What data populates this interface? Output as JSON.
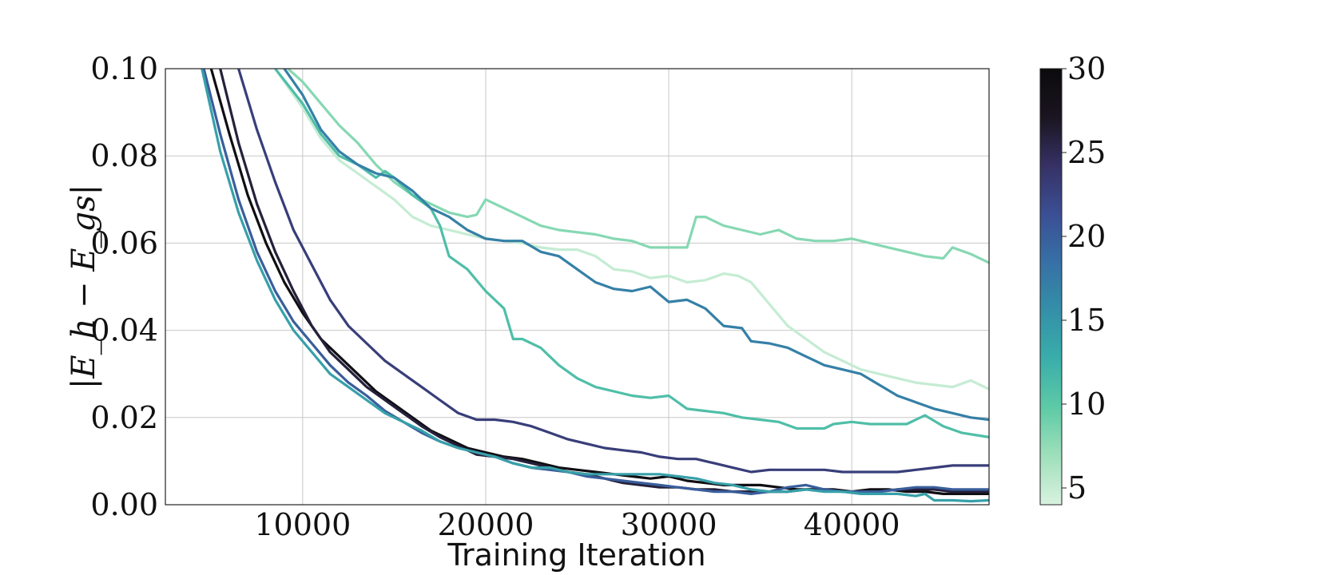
{
  "chart_data": {
    "type": "line",
    "xlabel": "Training Iteration",
    "ylabel": "|E_h − E_gs|",
    "xlim": [
      2500,
      47500
    ],
    "ylim": [
      0.0,
      0.1
    ],
    "xticks": [
      10000,
      20000,
      30000,
      40000
    ],
    "xtick_labels": [
      "10000",
      "20000",
      "30000",
      "40000"
    ],
    "yticks": [
      0.0,
      0.02,
      0.04,
      0.06,
      0.08,
      0.1
    ],
    "ytick_labels": [
      "0.00",
      "0.02",
      "0.04",
      "0.06",
      "0.08",
      "0.10"
    ],
    "grid": true,
    "colorbar": {
      "min": 4,
      "max": 30,
      "ticks": [
        5,
        10,
        15,
        20,
        25,
        30
      ],
      "tick_labels": [
        "5",
        "10",
        "15",
        "20",
        "25",
        "30"
      ],
      "colormap": [
        "#d9f2e0",
        "#9fe0bb",
        "#5ecaa6",
        "#3aaeaa",
        "#3490a8",
        "#3670a6",
        "#3b4f94",
        "#363165",
        "#1a1520",
        "#0b0a0c"
      ]
    },
    "series": [
      {
        "c": 5,
        "x": [
          8500,
          10000,
          11000,
          12000,
          13000,
          14000,
          15000,
          16000,
          17000,
          18000,
          19000,
          20000,
          21000,
          22000,
          23000,
          24000,
          25000,
          26000,
          27000,
          28000,
          29000,
          30000,
          31000,
          32000,
          33000,
          33800,
          34500,
          35500,
          36500,
          37500,
          38500,
          39500,
          40500,
          41500,
          42500,
          43500,
          44500,
          45500,
          46500,
          47500
        ],
        "y": [
          0.1,
          0.091,
          0.084,
          0.079,
          0.076,
          0.073,
          0.07,
          0.066,
          0.064,
          0.063,
          0.062,
          0.061,
          0.0605,
          0.06,
          0.059,
          0.0585,
          0.0585,
          0.057,
          0.054,
          0.0535,
          0.052,
          0.0525,
          0.051,
          0.0515,
          0.053,
          0.0525,
          0.051,
          0.046,
          0.041,
          0.038,
          0.035,
          0.033,
          0.031,
          0.03,
          0.029,
          0.028,
          0.0275,
          0.027,
          0.0285,
          0.0265
        ]
      },
      {
        "c": 8,
        "x": [
          9200,
          10000,
          11000,
          12000,
          13000,
          14000,
          15000,
          16000,
          17000,
          18000,
          19000,
          19500,
          20000,
          21000,
          22000,
          23000,
          24000,
          25000,
          26000,
          27000,
          28000,
          29000,
          30000,
          31000,
          31500,
          32000,
          33000,
          34000,
          35000,
          36000,
          37000,
          38000,
          39000,
          40000,
          41000,
          42000,
          43000,
          44000,
          45000,
          45500,
          46500,
          47500
        ],
        "y": [
          0.1,
          0.097,
          0.092,
          0.087,
          0.083,
          0.078,
          0.074,
          0.071,
          0.069,
          0.067,
          0.066,
          0.0665,
          0.07,
          0.068,
          0.066,
          0.064,
          0.063,
          0.0625,
          0.062,
          0.061,
          0.0605,
          0.059,
          0.059,
          0.059,
          0.066,
          0.066,
          0.064,
          0.063,
          0.062,
          0.063,
          0.061,
          0.0605,
          0.0605,
          0.061,
          0.06,
          0.059,
          0.058,
          0.057,
          0.0565,
          0.059,
          0.0575,
          0.0555
        ]
      },
      {
        "c": 11,
        "x": [
          8500,
          10000,
          11000,
          12000,
          13000,
          14000,
          14500,
          15000,
          16000,
          17000,
          17500,
          18000,
          19000,
          20000,
          21000,
          21500,
          22000,
          23000,
          24000,
          25000,
          26000,
          27000,
          28000,
          29000,
          30000,
          31000,
          32000,
          33000,
          34000,
          35000,
          36000,
          37000,
          38000,
          38500,
          39000,
          40000,
          41000,
          42000,
          43000,
          44000,
          45000,
          46000,
          47500
        ],
        "y": [
          0.1,
          0.092,
          0.085,
          0.08,
          0.078,
          0.075,
          0.0765,
          0.075,
          0.071,
          0.068,
          0.064,
          0.057,
          0.054,
          0.049,
          0.045,
          0.038,
          0.038,
          0.036,
          0.032,
          0.029,
          0.027,
          0.026,
          0.025,
          0.0245,
          0.025,
          0.022,
          0.0215,
          0.021,
          0.02,
          0.0195,
          0.019,
          0.0175,
          0.0175,
          0.0175,
          0.0185,
          0.019,
          0.0185,
          0.0185,
          0.0185,
          0.0205,
          0.018,
          0.0165,
          0.0155
        ]
      },
      {
        "c": 17,
        "x": [
          9000,
          10000,
          11000,
          12000,
          13000,
          14000,
          15000,
          16000,
          17000,
          18000,
          19000,
          20000,
          21000,
          22000,
          23000,
          24000,
          25000,
          26000,
          27000,
          28000,
          29000,
          30000,
          31000,
          32000,
          33000,
          34000,
          34500,
          35500,
          36500,
          37500,
          38500,
          39500,
          40500,
          41500,
          42500,
          43500,
          44500,
          45500,
          46500,
          47500
        ],
        "y": [
          0.1,
          0.094,
          0.086,
          0.081,
          0.078,
          0.076,
          0.075,
          0.072,
          0.068,
          0.066,
          0.063,
          0.061,
          0.0605,
          0.0605,
          0.058,
          0.057,
          0.054,
          0.051,
          0.0495,
          0.049,
          0.05,
          0.0465,
          0.047,
          0.045,
          0.041,
          0.0405,
          0.0375,
          0.037,
          0.036,
          0.034,
          0.032,
          0.031,
          0.03,
          0.0275,
          0.025,
          0.0235,
          0.022,
          0.021,
          0.02,
          0.0195
        ]
      },
      {
        "c": 23,
        "x": [
          6500,
          7500,
          8500,
          9500,
          10500,
          11500,
          12500,
          13500,
          14500,
          15500,
          16500,
          17500,
          18500,
          19500,
          20500,
          21500,
          22500,
          23500,
          24500,
          25500,
          26500,
          27500,
          28500,
          29500,
          30500,
          31500,
          32500,
          33500,
          34500,
          35500,
          36500,
          37500,
          38500,
          39500,
          40500,
          41500,
          42500,
          43500,
          44500,
          45500,
          46500,
          47500
        ],
        "y": [
          0.1,
          0.086,
          0.074,
          0.063,
          0.055,
          0.047,
          0.041,
          0.037,
          0.033,
          0.03,
          0.027,
          0.024,
          0.021,
          0.0195,
          0.0195,
          0.019,
          0.018,
          0.0165,
          0.015,
          0.014,
          0.013,
          0.0125,
          0.012,
          0.011,
          0.0105,
          0.0105,
          0.0095,
          0.0085,
          0.0075,
          0.008,
          0.008,
          0.008,
          0.008,
          0.0075,
          0.0075,
          0.0075,
          0.0075,
          0.008,
          0.0085,
          0.009,
          0.009,
          0.009
        ]
      },
      {
        "c": 29,
        "x": [
          5000,
          6000,
          7000,
          8000,
          9000,
          10000,
          11000,
          12000,
          13000,
          14000,
          15000,
          16000,
          17000,
          18000,
          19000,
          20000,
          21000,
          22000,
          23000,
          24000,
          25000,
          26000,
          27000,
          28000,
          29000,
          30000,
          31000,
          32000,
          33000,
          34000,
          35000,
          36000,
          37000,
          38000,
          39000,
          40000,
          41000,
          42000,
          43000,
          44000,
          45000,
          46000,
          47500
        ],
        "y": [
          0.1,
          0.085,
          0.071,
          0.06,
          0.051,
          0.044,
          0.038,
          0.034,
          0.03,
          0.026,
          0.023,
          0.02,
          0.017,
          0.015,
          0.013,
          0.012,
          0.011,
          0.0105,
          0.0095,
          0.0085,
          0.008,
          0.0075,
          0.007,
          0.0065,
          0.006,
          0.0065,
          0.0055,
          0.005,
          0.0045,
          0.0045,
          0.0045,
          0.004,
          0.0035,
          0.0035,
          0.0035,
          0.003,
          0.0035,
          0.0035,
          0.003,
          0.003,
          0.0025,
          0.0025,
          0.0025
        ]
      },
      {
        "c": 26,
        "x": [
          5500,
          6500,
          7500,
          8500,
          9500,
          10500,
          11500,
          12500,
          13500,
          14500,
          15500,
          16500,
          17500,
          18500,
          19500,
          20500,
          21500,
          22500,
          23500,
          24500,
          25500,
          26500,
          27500,
          28500,
          29500,
          30500,
          31500,
          32500,
          33500,
          34500,
          35500,
          36500,
          37500,
          38500,
          39500,
          40500,
          41500,
          42500,
          43500,
          44500,
          45500,
          46500,
          47500
        ],
        "y": [
          0.1,
          0.083,
          0.069,
          0.058,
          0.049,
          0.041,
          0.035,
          0.031,
          0.027,
          0.024,
          0.021,
          0.018,
          0.0155,
          0.0135,
          0.0115,
          0.011,
          0.0105,
          0.0095,
          0.0085,
          0.0075,
          0.007,
          0.006,
          0.005,
          0.0045,
          0.004,
          0.004,
          0.0035,
          0.0035,
          0.003,
          0.003,
          0.003,
          0.003,
          0.0035,
          0.0035,
          0.003,
          0.003,
          0.003,
          0.0035,
          0.0035,
          0.0035,
          0.003,
          0.003,
          0.003
        ]
      },
      {
        "c": 20,
        "x": [
          4600,
          5500,
          6500,
          7500,
          8500,
          9500,
          10500,
          11500,
          12500,
          13500,
          14500,
          15500,
          16500,
          17500,
          18500,
          19500,
          20500,
          21500,
          22500,
          23500,
          24500,
          25500,
          26500,
          27500,
          28500,
          29500,
          30500,
          31500,
          32500,
          33500,
          34500,
          35500,
          36500,
          37500,
          38500,
          39500,
          40500,
          41500,
          42500,
          43500,
          44500,
          45500,
          46500,
          47500
        ],
        "y": [
          0.1,
          0.085,
          0.07,
          0.058,
          0.049,
          0.042,
          0.037,
          0.032,
          0.028,
          0.025,
          0.0215,
          0.019,
          0.0165,
          0.0145,
          0.013,
          0.012,
          0.011,
          0.0095,
          0.0085,
          0.008,
          0.0075,
          0.0065,
          0.006,
          0.0055,
          0.005,
          0.0045,
          0.004,
          0.0035,
          0.003,
          0.003,
          0.0025,
          0.003,
          0.004,
          0.0045,
          0.0035,
          0.003,
          0.003,
          0.003,
          0.0035,
          0.004,
          0.004,
          0.0035,
          0.0035,
          0.0035
        ]
      },
      {
        "c": 14,
        "x": [
          4500,
          5500,
          6500,
          7500,
          8500,
          9500,
          10500,
          11500,
          12500,
          13500,
          14500,
          15500,
          16500,
          17500,
          18500,
          19500,
          20500,
          21500,
          22500,
          23500,
          24500,
          25500,
          26500,
          27500,
          28500,
          29500,
          30500,
          31500,
          32500,
          33500,
          34500,
          35500,
          36500,
          37500,
          38500,
          39500,
          40500,
          41500,
          42500,
          43500,
          44000,
          44500,
          45500,
          46500,
          47500
        ],
        "y": [
          0.1,
          0.081,
          0.067,
          0.056,
          0.047,
          0.04,
          0.035,
          0.03,
          0.027,
          0.024,
          0.021,
          0.019,
          0.017,
          0.0145,
          0.013,
          0.012,
          0.011,
          0.0095,
          0.0085,
          0.0085,
          0.0075,
          0.007,
          0.007,
          0.007,
          0.007,
          0.007,
          0.0065,
          0.006,
          0.005,
          0.0045,
          0.0035,
          0.003,
          0.003,
          0.0035,
          0.003,
          0.003,
          0.0025,
          0.0025,
          0.0025,
          0.002,
          0.0025,
          0.001,
          0.001,
          0.0008,
          0.001
        ]
      }
    ]
  }
}
